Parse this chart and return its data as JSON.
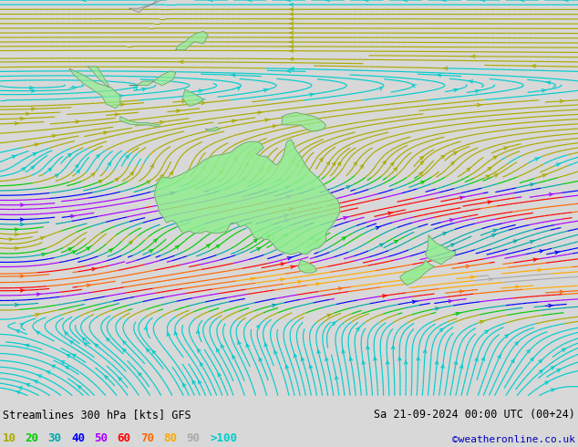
{
  "title_left": "Streamlines 300 hPa [kts] GFS",
  "title_right": "Sa 21-09-2024 00:00 UTC (00+24)",
  "credit": "©weatheronline.co.uk",
  "legend_values": [
    "10",
    "20",
    "30",
    "40",
    "50",
    "60",
    "70",
    "80",
    "90",
    ">100"
  ],
  "legend_colors": [
    "#aaaa00",
    "#00cc00",
    "#00aaaa",
    "#0000ff",
    "#aa00ff",
    "#ff0000",
    "#ff6600",
    "#ffaa00",
    "#aaaaaa",
    "#00cccc"
  ],
  "bg_color": "#d8d8d8",
  "map_bg": "#d8d8d8",
  "australia_color": "#90ee90",
  "text_color": "#000000",
  "figsize": [
    6.34,
    4.9
  ],
  "dpi": 100,
  "lon_min": 80,
  "lon_max": 205,
  "lat_min": -73,
  "lat_max": 22,
  "bottom_bar_height": 0.115,
  "speed_levels": [
    0,
    10,
    20,
    30,
    40,
    50,
    60,
    70,
    80,
    90,
    150
  ],
  "speed_colors": [
    "#00cccc",
    "#aaaa00",
    "#00cc00",
    "#00aaaa",
    "#0000ff",
    "#aa00ff",
    "#ff0000",
    "#ff6600",
    "#ffaa00",
    "#aaaaaa"
  ]
}
